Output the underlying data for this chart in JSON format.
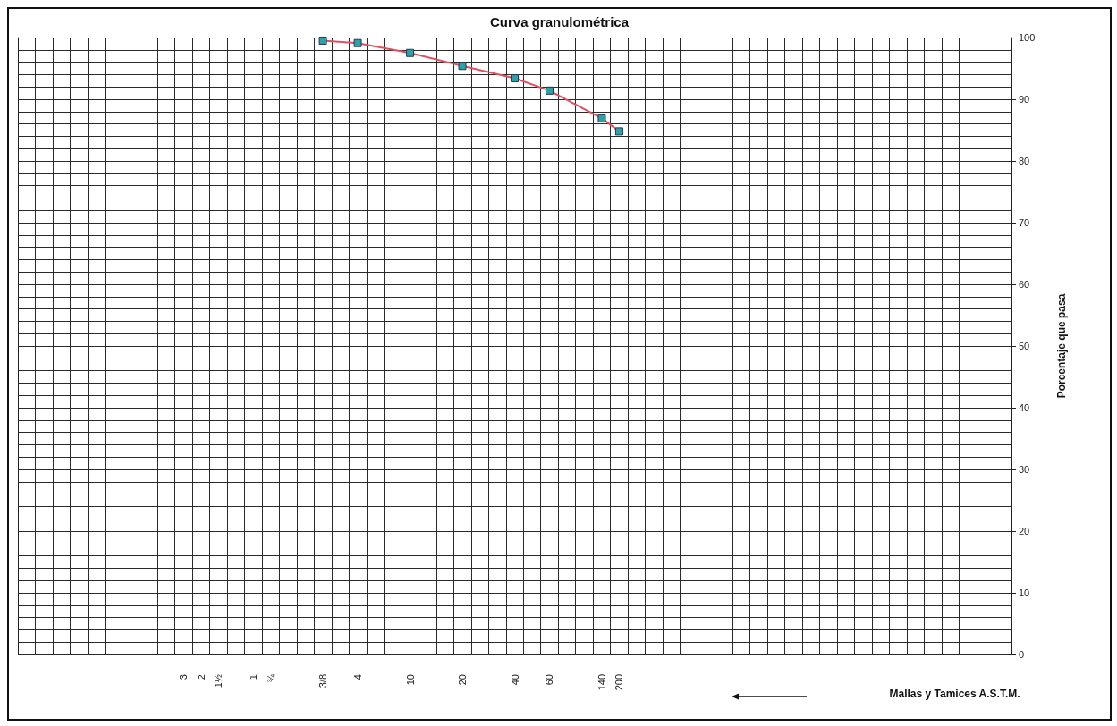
{
  "chart_data": {
    "type": "line",
    "title": "Curva granulométrica",
    "xlabel": "Mallas y Tamices A.S.T.M.",
    "ylabel": "Porcentaje que pasa",
    "categories": [
      null,
      null,
      null,
      null,
      null,
      null,
      null,
      null,
      null,
      "3",
      "2",
      "1½",
      null,
      "1",
      "¾",
      null,
      null,
      "3/8",
      null,
      "4",
      null,
      null,
      "10",
      null,
      null,
      "20",
      null,
      null,
      "40",
      null,
      "60",
      null,
      null,
      "140",
      "200",
      null,
      null,
      null,
      null,
      null,
      null,
      null,
      null,
      null,
      null,
      null,
      null,
      null,
      null,
      null,
      null,
      null,
      null,
      null,
      null,
      null,
      null
    ],
    "ylim": [
      0,
      100
    ],
    "yticks": [
      0,
      10,
      20,
      30,
      40,
      50,
      60,
      70,
      80,
      90,
      100
    ],
    "grid": true,
    "marker": "square",
    "line_style": "solid",
    "series": [
      {
        "color": "#e0505f",
        "values": [
          null,
          null,
          null,
          null,
          null,
          null,
          null,
          null,
          null,
          null,
          null,
          null,
          null,
          null,
          null,
          null,
          null,
          99.5,
          null,
          99.1,
          null,
          null,
          97.5,
          null,
          null,
          95.4,
          null,
          null,
          93.4,
          null,
          91.4,
          null,
          null,
          86.9,
          84.8,
          null,
          null,
          null,
          null,
          null,
          null,
          null,
          null,
          null,
          null,
          null,
          null,
          null,
          null,
          null,
          null,
          null,
          null,
          null,
          null,
          null,
          null
        ]
      }
    ]
  }
}
